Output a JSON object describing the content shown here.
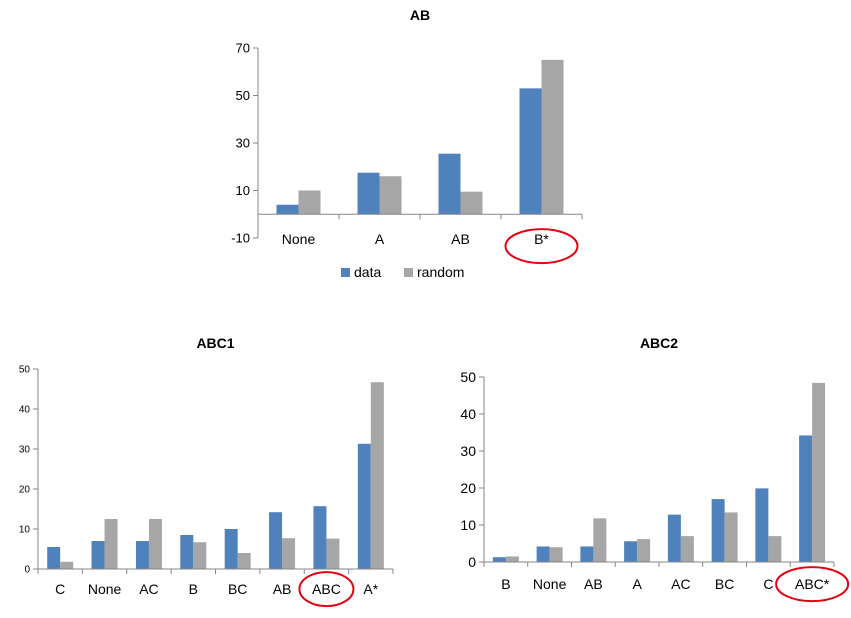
{
  "chart_data": [
    {
      "type": "bar",
      "title": "AB",
      "categories": [
        "None",
        "A",
        "AB",
        "B*"
      ],
      "series": [
        {
          "name": "data",
          "values": [
            4,
            17.5,
            25.5,
            53
          ]
        },
        {
          "name": "random",
          "values": [
            10,
            16,
            9.5,
            65
          ]
        }
      ],
      "ylim": [
        -10,
        70
      ],
      "yticks": [
        -10,
        10,
        30,
        50,
        70
      ],
      "highlighted_category": "B*",
      "legend": "bottom",
      "colors": {
        "data": "#4f81bd",
        "random": "#a6a6a6",
        "highlight": "#e3000f"
      }
    },
    {
      "type": "bar",
      "title": "ABC1",
      "categories": [
        "C",
        "None",
        "AC",
        "B",
        "BC",
        "AB",
        "ABC",
        "A*"
      ],
      "series": [
        {
          "name": "data",
          "values": [
            5.5,
            7,
            7,
            8.5,
            10,
            14.2,
            15.7,
            31.3
          ]
        },
        {
          "name": "random",
          "values": [
            1.8,
            12.5,
            12.5,
            6.7,
            4,
            7.7,
            7.6,
            46.7
          ]
        }
      ],
      "ylim": [
        0,
        50
      ],
      "yticks": [
        0,
        10,
        20,
        30,
        40,
        50
      ],
      "highlighted_category": "ABC",
      "colors": {
        "data": "#4f81bd",
        "random": "#a6a6a6",
        "highlight": "#e3000f"
      }
    },
    {
      "type": "bar",
      "title": "ABC2",
      "categories": [
        "B",
        "None",
        "AB",
        "A",
        "AC",
        "BC",
        "C",
        "ABC*"
      ],
      "series": [
        {
          "name": "data",
          "values": [
            1.3,
            4.2,
            4.2,
            5.6,
            12.8,
            17,
            19.9,
            34.2
          ]
        },
        {
          "name": "random",
          "values": [
            1.5,
            4,
            11.8,
            6.2,
            7,
            13.4,
            7,
            48.4
          ]
        }
      ],
      "ylim": [
        0,
        50
      ],
      "yticks": [
        0,
        10,
        20,
        30,
        40,
        50
      ],
      "highlighted_category": "ABC*",
      "colors": {
        "data": "#4f81bd",
        "random": "#a6a6a6",
        "highlight": "#e3000f"
      }
    }
  ]
}
